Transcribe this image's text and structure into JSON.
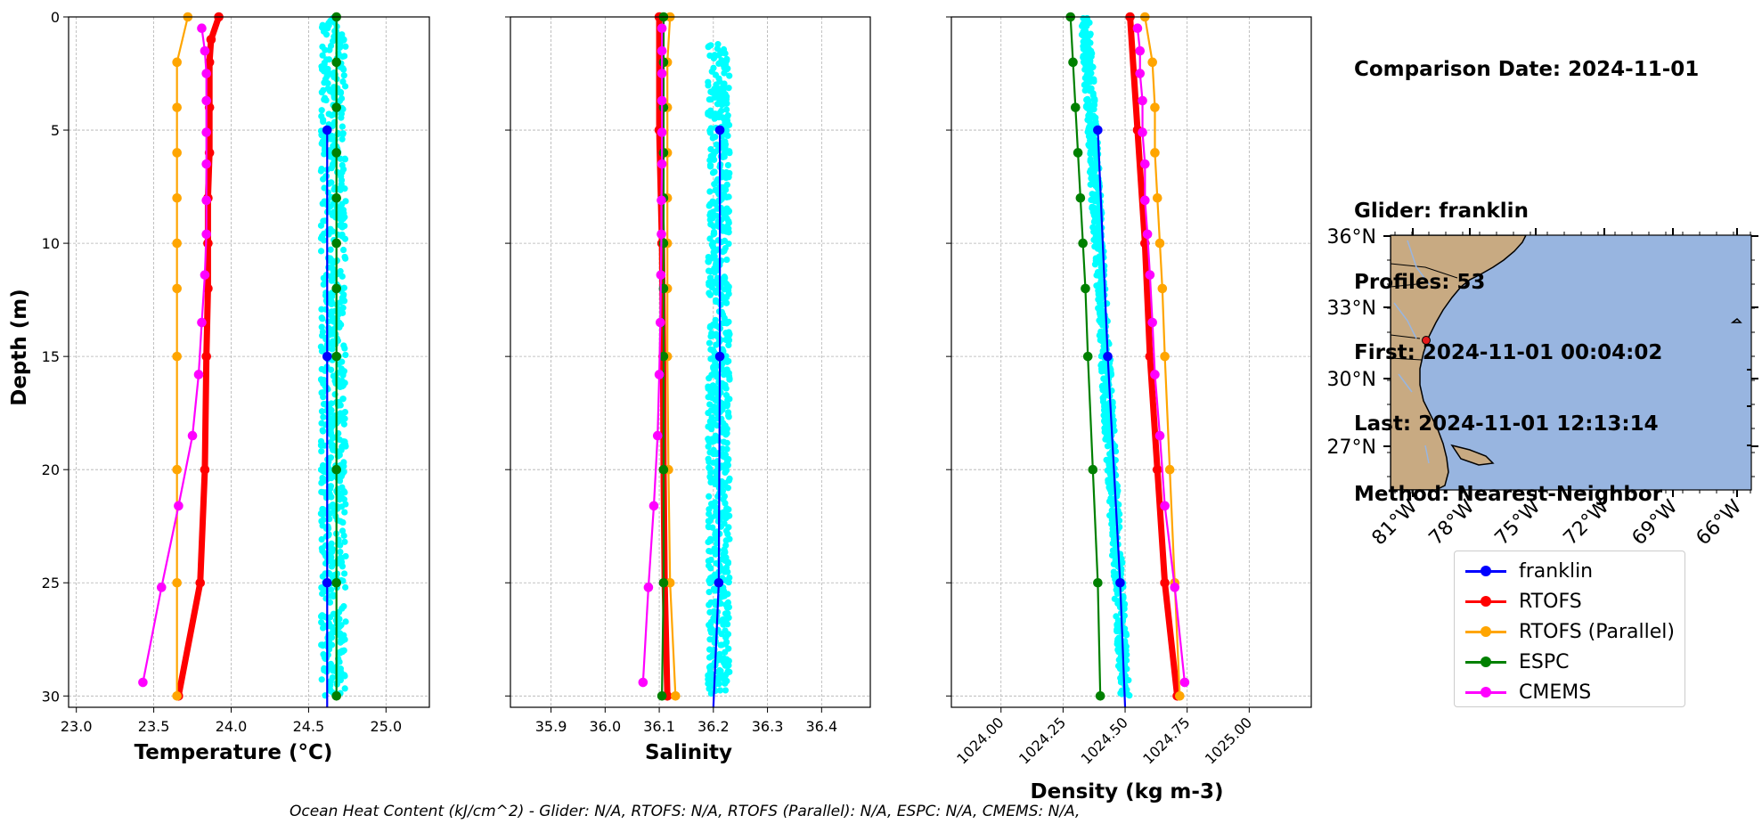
{
  "chart_data": [
    {
      "type": "line",
      "xlabel": "Temperature (°C)",
      "ylabel": "Depth (m)",
      "xlim": [
        22.95,
        25.28
      ],
      "ylim": [
        30.5,
        0
      ],
      "xticks": [
        "23.0",
        "23.5",
        "24.0",
        "24.5",
        "25.0"
      ],
      "yticks": [
        "0",
        "5",
        "10",
        "15",
        "20",
        "25",
        "30"
      ],
      "grid": true,
      "scatter": {
        "name": "franklin",
        "color": "#00ffff",
        "x_center": 24.66,
        "x_spread": 0.08,
        "depth_range": [
          0,
          30
        ]
      },
      "series": [
        {
          "name": "franklin",
          "color": "#0000ff",
          "depth": [
            5,
            15,
            25,
            30.5
          ],
          "values": [
            24.62,
            24.62,
            24.62,
            24.62
          ]
        },
        {
          "name": "RTOFS",
          "color": "#ff0000",
          "depth": [
            0,
            1,
            2,
            4,
            6,
            8,
            10,
            12,
            15,
            20,
            25,
            30
          ],
          "values": [
            23.92,
            23.87,
            23.86,
            23.86,
            23.86,
            23.85,
            23.85,
            23.85,
            23.84,
            23.83,
            23.8,
            23.66
          ]
        },
        {
          "name": "RTOFS (Parallel)",
          "color": "#ffa500",
          "depth": [
            0,
            2,
            4,
            6,
            8,
            10,
            12,
            15,
            20,
            25,
            30
          ],
          "values": [
            23.72,
            23.65,
            23.65,
            23.65,
            23.65,
            23.65,
            23.65,
            23.65,
            23.65,
            23.65,
            23.65
          ]
        },
        {
          "name": "ESPC",
          "color": "#008000",
          "depth": [
            0,
            2,
            4,
            6,
            8,
            10,
            12,
            15,
            20,
            25,
            30
          ],
          "values": [
            24.68,
            24.68,
            24.68,
            24.68,
            24.68,
            24.68,
            24.68,
            24.68,
            24.68,
            24.68,
            24.68
          ]
        },
        {
          "name": "CMEMS",
          "color": "#ff00ff",
          "depth": [
            0.5,
            1.5,
            2.5,
            3.7,
            5.1,
            6.5,
            8.1,
            9.6,
            11.4,
            13.5,
            15.8,
            18.5,
            21.6,
            25.2,
            29.4
          ],
          "values": [
            23.81,
            23.83,
            23.84,
            23.84,
            23.84,
            23.84,
            23.84,
            23.84,
            23.83,
            23.81,
            23.79,
            23.75,
            23.66,
            23.55,
            23.43
          ]
        }
      ]
    },
    {
      "type": "line",
      "xlabel": "Salinity",
      "ylabel": "",
      "xlim": [
        35.825,
        36.49
      ],
      "ylim": [
        30.5,
        0
      ],
      "xticks": [
        "35.9",
        "36.0",
        "36.1",
        "36.2",
        "36.3",
        "36.4"
      ],
      "grid": true,
      "scatter": {
        "name": "franklin",
        "color": "#00ffff",
        "x_center": 36.21,
        "x_spread": 0.02,
        "depth_range": [
          1.2,
          29.9
        ]
      },
      "series": [
        {
          "name": "franklin",
          "color": "#0000ff",
          "depth": [
            5,
            15,
            25,
            30.5
          ],
          "values": [
            36.212,
            36.212,
            36.21,
            36.2
          ]
        },
        {
          "name": "RTOFS",
          "color": "#ff0000",
          "depth": [
            0,
            5,
            10,
            15,
            20,
            25,
            30
          ],
          "values": [
            36.1,
            36.1,
            36.105,
            36.107,
            36.108,
            36.11,
            36.115
          ]
        },
        {
          "name": "RTOFS (Parallel)",
          "color": "#ffa500",
          "depth": [
            0,
            2,
            4,
            6,
            8,
            10,
            12,
            15,
            20,
            25,
            30
          ],
          "values": [
            36.12,
            36.115,
            36.115,
            36.115,
            36.115,
            36.115,
            36.115,
            36.115,
            36.117,
            36.12,
            36.13
          ]
        },
        {
          "name": "ESPC",
          "color": "#008000",
          "depth": [
            0,
            2,
            4,
            6,
            8,
            10,
            12,
            15,
            20,
            25,
            30
          ],
          "values": [
            36.108,
            36.108,
            36.108,
            36.108,
            36.108,
            36.108,
            36.108,
            36.108,
            36.108,
            36.108,
            36.105
          ]
        },
        {
          "name": "CMEMS",
          "color": "#ff00ff",
          "depth": [
            0.5,
            1.5,
            2.5,
            3.7,
            5.1,
            6.5,
            8.1,
            9.6,
            11.4,
            13.5,
            15.8,
            18.5,
            21.6,
            25.2,
            29.4
          ],
          "values": [
            36.105,
            36.105,
            36.105,
            36.105,
            36.105,
            36.105,
            36.104,
            36.104,
            36.103,
            36.102,
            36.1,
            36.097,
            36.09,
            36.08,
            36.07
          ]
        }
      ]
    },
    {
      "type": "line",
      "xlabel": "Density (kg m-3)",
      "ylabel": "",
      "xlim": [
        1023.8,
        1025.25
      ],
      "ylim": [
        30.5,
        0
      ],
      "xticks": [
        "1024.00",
        "1024.25",
        "1024.50",
        "1024.75",
        "1025.00"
      ],
      "grid": true,
      "scatter": {
        "name": "franklin",
        "color": "#00ffff",
        "x_start": 1024.34,
        "x_end": 1024.5,
        "x_spread": 0.02,
        "depth_range": [
          0,
          30
        ]
      },
      "series": [
        {
          "name": "franklin",
          "color": "#0000ff",
          "depth": [
            5,
            15,
            25,
            30.5
          ],
          "values": [
            1024.39,
            1024.43,
            1024.48,
            1024.5
          ]
        },
        {
          "name": "RTOFS",
          "color": "#ff0000",
          "depth": [
            0,
            5,
            10,
            15,
            20,
            25,
            30
          ],
          "values": [
            1024.52,
            1024.55,
            1024.58,
            1024.6,
            1024.63,
            1024.66,
            1024.71
          ]
        },
        {
          "name": "RTOFS (Parallel)",
          "color": "#ffa500",
          "depth": [
            0,
            2,
            4,
            6,
            8,
            10,
            12,
            15,
            20,
            25,
            30
          ],
          "values": [
            1024.58,
            1024.61,
            1024.62,
            1024.62,
            1024.63,
            1024.64,
            1024.65,
            1024.66,
            1024.68,
            1024.7,
            1024.72
          ]
        },
        {
          "name": "ESPC",
          "color": "#008000",
          "depth": [
            0,
            2,
            4,
            6,
            8,
            10,
            12,
            15,
            20,
            25,
            30
          ],
          "values": [
            1024.28,
            1024.29,
            1024.3,
            1024.31,
            1024.32,
            1024.33,
            1024.34,
            1024.35,
            1024.37,
            1024.39,
            1024.4
          ]
        },
        {
          "name": "CMEMS",
          "color": "#ff00ff",
          "depth": [
            0.5,
            1.5,
            2.5,
            3.7,
            5.1,
            6.5,
            8.1,
            9.6,
            11.4,
            13.5,
            15.8,
            18.5,
            21.6,
            25.2,
            29.4
          ],
          "values": [
            1024.55,
            1024.56,
            1024.56,
            1024.57,
            1024.57,
            1024.58,
            1024.58,
            1024.59,
            1024.6,
            1024.61,
            1024.62,
            1024.64,
            1024.66,
            1024.7,
            1024.74
          ]
        }
      ]
    }
  ],
  "info": {
    "comparison_date": "Comparison Date: 2024-11-01",
    "glider": "Glider: franklin",
    "profiles": "Profiles: 53",
    "first": "First: 2024-11-01 00:04:02",
    "last": "Last: 2024-11-01 12:13:14",
    "method": "Method: Nearest-Neighbor"
  },
  "map": {
    "lat_labels": [
      "36°N",
      "33°N",
      "30°N",
      "27°N"
    ],
    "lon_labels": [
      "81°W",
      "78°W",
      "75°W",
      "72°W",
      "69°W",
      "66°W"
    ],
    "land_color": "#c8aa82",
    "ocean_color": "#98b5e0",
    "glider_marker_color": "#e41a1c"
  },
  "legend": {
    "items": [
      {
        "label": "franklin",
        "color": "#0000ff"
      },
      {
        "label": "RTOFS",
        "color": "#ff0000"
      },
      {
        "label": "RTOFS (Parallel)",
        "color": "#ffa500"
      },
      {
        "label": "ESPC",
        "color": "#008000"
      },
      {
        "label": "CMEMS",
        "color": "#ff00ff"
      }
    ]
  },
  "footer": "Ocean Heat Content (kJ/cm^2) - Glider: N/A,  RTOFS: N/A,  RTOFS (Parallel): N/A,  ESPC: N/A,  CMEMS: N/A,"
}
